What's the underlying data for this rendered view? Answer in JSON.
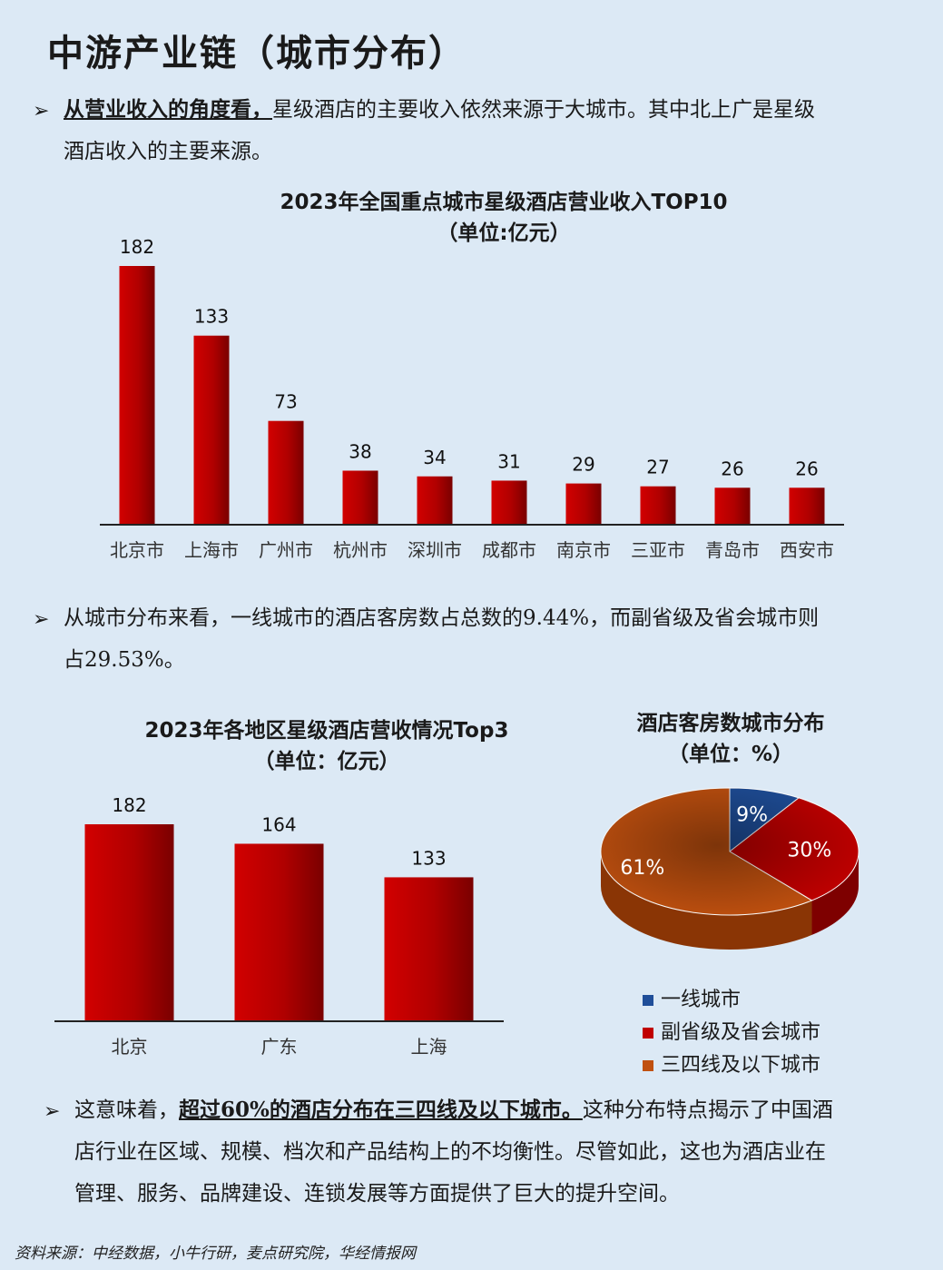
{
  "title": "中游产业链（城市分布）",
  "para1": {
    "highlight": "从营业收入的角度看，",
    "line1_rest": "星级酒店的主要收入依然来源于大城市。其中北上广是星级",
    "line2": "酒店收入的主要来源。"
  },
  "para2": {
    "line1": "从城市分布来看，一线城市的酒店客房数占总数的9.44%，而副省级及省会城市则",
    "line2": "占29.53%。"
  },
  "para3": {
    "lead": "这意味着，",
    "highlight": "超过60%的酒店分布在三四线及以下城市。",
    "line1_rest": "这种分布特点揭示了中国酒",
    "line2": "店行业在区域、规模、档次和产品结构上的不均衡性。尽管如此，这也为酒店业在",
    "line3": "管理、服务、品牌建设、连锁发展等方面提供了巨大的提升空间。"
  },
  "source": "资料来源：中经数据，小牛行研，麦点研究院，华经情报网",
  "colors": {
    "bar": "#c00000",
    "tier1": "#1f4e99",
    "tier2": "#c00000",
    "tier3": "#c0500f"
  },
  "chart_data": [
    {
      "type": "bar",
      "title": "2023年全国重点城市星级酒店营业收入TOP10",
      "subtitle": "（单位:亿元）",
      "categories": [
        "北京市",
        "上海市",
        "广州市",
        "杭州市",
        "深圳市",
        "成都市",
        "南京市",
        "三亚市",
        "青岛市",
        "西安市"
      ],
      "values": [
        182,
        133,
        73,
        38,
        34,
        31,
        29,
        27,
        26,
        26
      ]
    },
    {
      "type": "bar",
      "title": "2023年各地区星级酒店营收情况Top3",
      "subtitle": "（单位：亿元）",
      "categories": [
        "北京",
        "广东",
        "上海"
      ],
      "values": [
        182,
        164,
        133
      ]
    },
    {
      "type": "pie",
      "title": "酒店客房数城市分布",
      "subtitle": "（单位：%）",
      "labels": [
        "一线城市",
        "副省级及省会城市",
        "三四线及以下城市"
      ],
      "values": [
        9,
        30,
        61
      ],
      "value_labels": [
        "9%",
        "30%",
        "61%"
      ]
    }
  ]
}
